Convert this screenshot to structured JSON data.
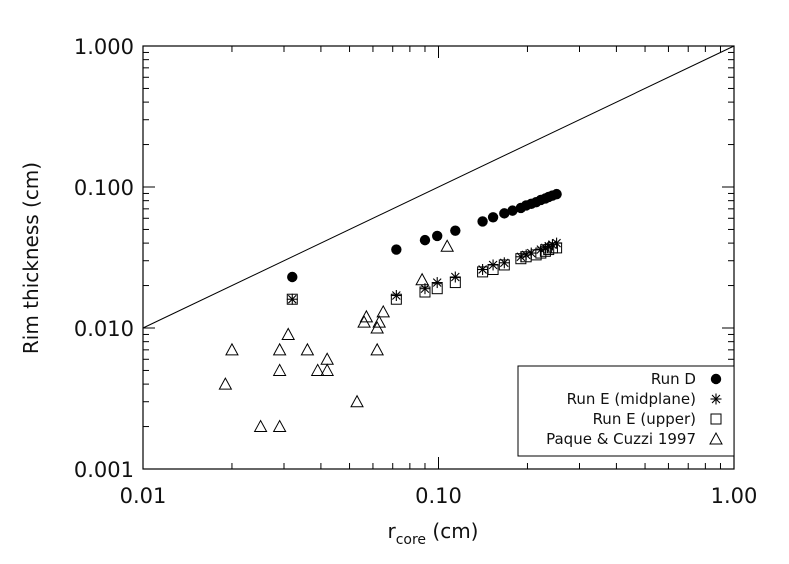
{
  "chart_data": {
    "type": "scatter",
    "xlabel": "r",
    "xlabel_sub": "core",
    "xlabel_unit": " (cm)",
    "ylabel": "Rim thickness (cm)",
    "xscale": "log",
    "yscale": "log",
    "xlim": [
      0.01,
      1.0
    ],
    "ylim": [
      0.001,
      1.0
    ],
    "xticks": [
      {
        "value": 0.01,
        "label": "0.01"
      },
      {
        "value": 0.1,
        "label": "0.10"
      },
      {
        "value": 1.0,
        "label": "1.00"
      }
    ],
    "yticks": [
      {
        "value": 0.001,
        "label": "0.001"
      },
      {
        "value": 0.01,
        "label": "0.010"
      },
      {
        "value": 0.1,
        "label": "0.100"
      },
      {
        "value": 1.0,
        "label": "1.000"
      }
    ],
    "legend_position": "bottom-right",
    "reference_line": {
      "x": [
        0.01,
        1.0
      ],
      "y": [
        0.01,
        1.0
      ]
    },
    "series": [
      {
        "name": "Run D",
        "marker": "filled-circle",
        "points": [
          [
            0.032,
            0.023
          ],
          [
            0.072,
            0.036
          ],
          [
            0.09,
            0.042
          ],
          [
            0.099,
            0.045
          ],
          [
            0.114,
            0.049
          ],
          [
            0.141,
            0.057
          ],
          [
            0.153,
            0.061
          ],
          [
            0.167,
            0.065
          ],
          [
            0.178,
            0.068
          ],
          [
            0.19,
            0.071
          ],
          [
            0.198,
            0.074
          ],
          [
            0.206,
            0.076
          ],
          [
            0.214,
            0.078
          ],
          [
            0.222,
            0.081
          ],
          [
            0.23,
            0.083
          ],
          [
            0.236,
            0.085
          ],
          [
            0.243,
            0.087
          ],
          [
            0.251,
            0.089
          ]
        ]
      },
      {
        "name": "Run E (midplane)",
        "marker": "asterisk",
        "points": [
          [
            0.032,
            0.016
          ],
          [
            0.072,
            0.017
          ],
          [
            0.09,
            0.019
          ],
          [
            0.099,
            0.021
          ],
          [
            0.114,
            0.023
          ],
          [
            0.141,
            0.026
          ],
          [
            0.153,
            0.028
          ],
          [
            0.167,
            0.029
          ],
          [
            0.19,
            0.032
          ],
          [
            0.198,
            0.033
          ],
          [
            0.206,
            0.034
          ],
          [
            0.222,
            0.036
          ],
          [
            0.23,
            0.037
          ],
          [
            0.236,
            0.038
          ],
          [
            0.243,
            0.039
          ],
          [
            0.251,
            0.04
          ]
        ]
      },
      {
        "name": "Run E (upper)",
        "marker": "open-square",
        "points": [
          [
            0.032,
            0.016
          ],
          [
            0.072,
            0.016
          ],
          [
            0.09,
            0.018
          ],
          [
            0.099,
            0.019
          ],
          [
            0.114,
            0.021
          ],
          [
            0.141,
            0.025
          ],
          [
            0.153,
            0.026
          ],
          [
            0.167,
            0.028
          ],
          [
            0.19,
            0.031
          ],
          [
            0.198,
            0.032
          ],
          [
            0.214,
            0.033
          ],
          [
            0.222,
            0.034
          ],
          [
            0.23,
            0.035
          ],
          [
            0.236,
            0.036
          ],
          [
            0.243,
            0.037
          ],
          [
            0.251,
            0.037
          ]
        ]
      },
      {
        "name": "Paque & Cuzzi 1997",
        "marker": "open-triangle",
        "points": [
          [
            0.019,
            0.004
          ],
          [
            0.02,
            0.007
          ],
          [
            0.025,
            0.002
          ],
          [
            0.029,
            0.002
          ],
          [
            0.029,
            0.005
          ],
          [
            0.029,
            0.007
          ],
          [
            0.031,
            0.009
          ],
          [
            0.036,
            0.007
          ],
          [
            0.039,
            0.005
          ],
          [
            0.042,
            0.005
          ],
          [
            0.042,
            0.006
          ],
          [
            0.053,
            0.003
          ],
          [
            0.056,
            0.011
          ],
          [
            0.057,
            0.012
          ],
          [
            0.062,
            0.007
          ],
          [
            0.062,
            0.01
          ],
          [
            0.063,
            0.011
          ],
          [
            0.065,
            0.013
          ],
          [
            0.088,
            0.022
          ],
          [
            0.107,
            0.038
          ]
        ]
      }
    ]
  }
}
